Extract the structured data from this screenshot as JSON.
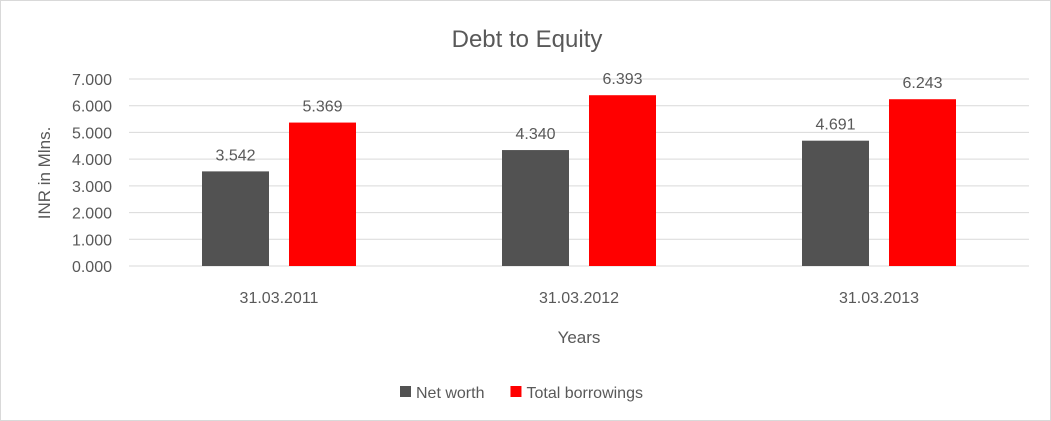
{
  "chart_data": {
    "type": "bar",
    "title": "Debt to Equity",
    "xlabel": "Years",
    "ylabel": "INR in Mlns.",
    "categories": [
      "31.03.2011",
      "31.03.2012",
      "31.03.2013"
    ],
    "series": [
      {
        "name": "Net worth",
        "color": "#525252",
        "values": [
          3.542,
          4.34,
          4.691
        ],
        "labels": [
          "3.542",
          "4.340",
          "4.691"
        ]
      },
      {
        "name": "Total borrowings",
        "color": "#ff0000",
        "values": [
          5.369,
          6.393,
          6.243
        ],
        "labels": [
          "5.369",
          "6.393",
          "6.243"
        ]
      }
    ],
    "ylim": [
      0,
      7
    ],
    "yticks": [
      "0.000",
      "1.000",
      "2.000",
      "3.000",
      "4.000",
      "5.000",
      "6.000",
      "7.000"
    ],
    "grid": true,
    "legend": "bottom"
  }
}
